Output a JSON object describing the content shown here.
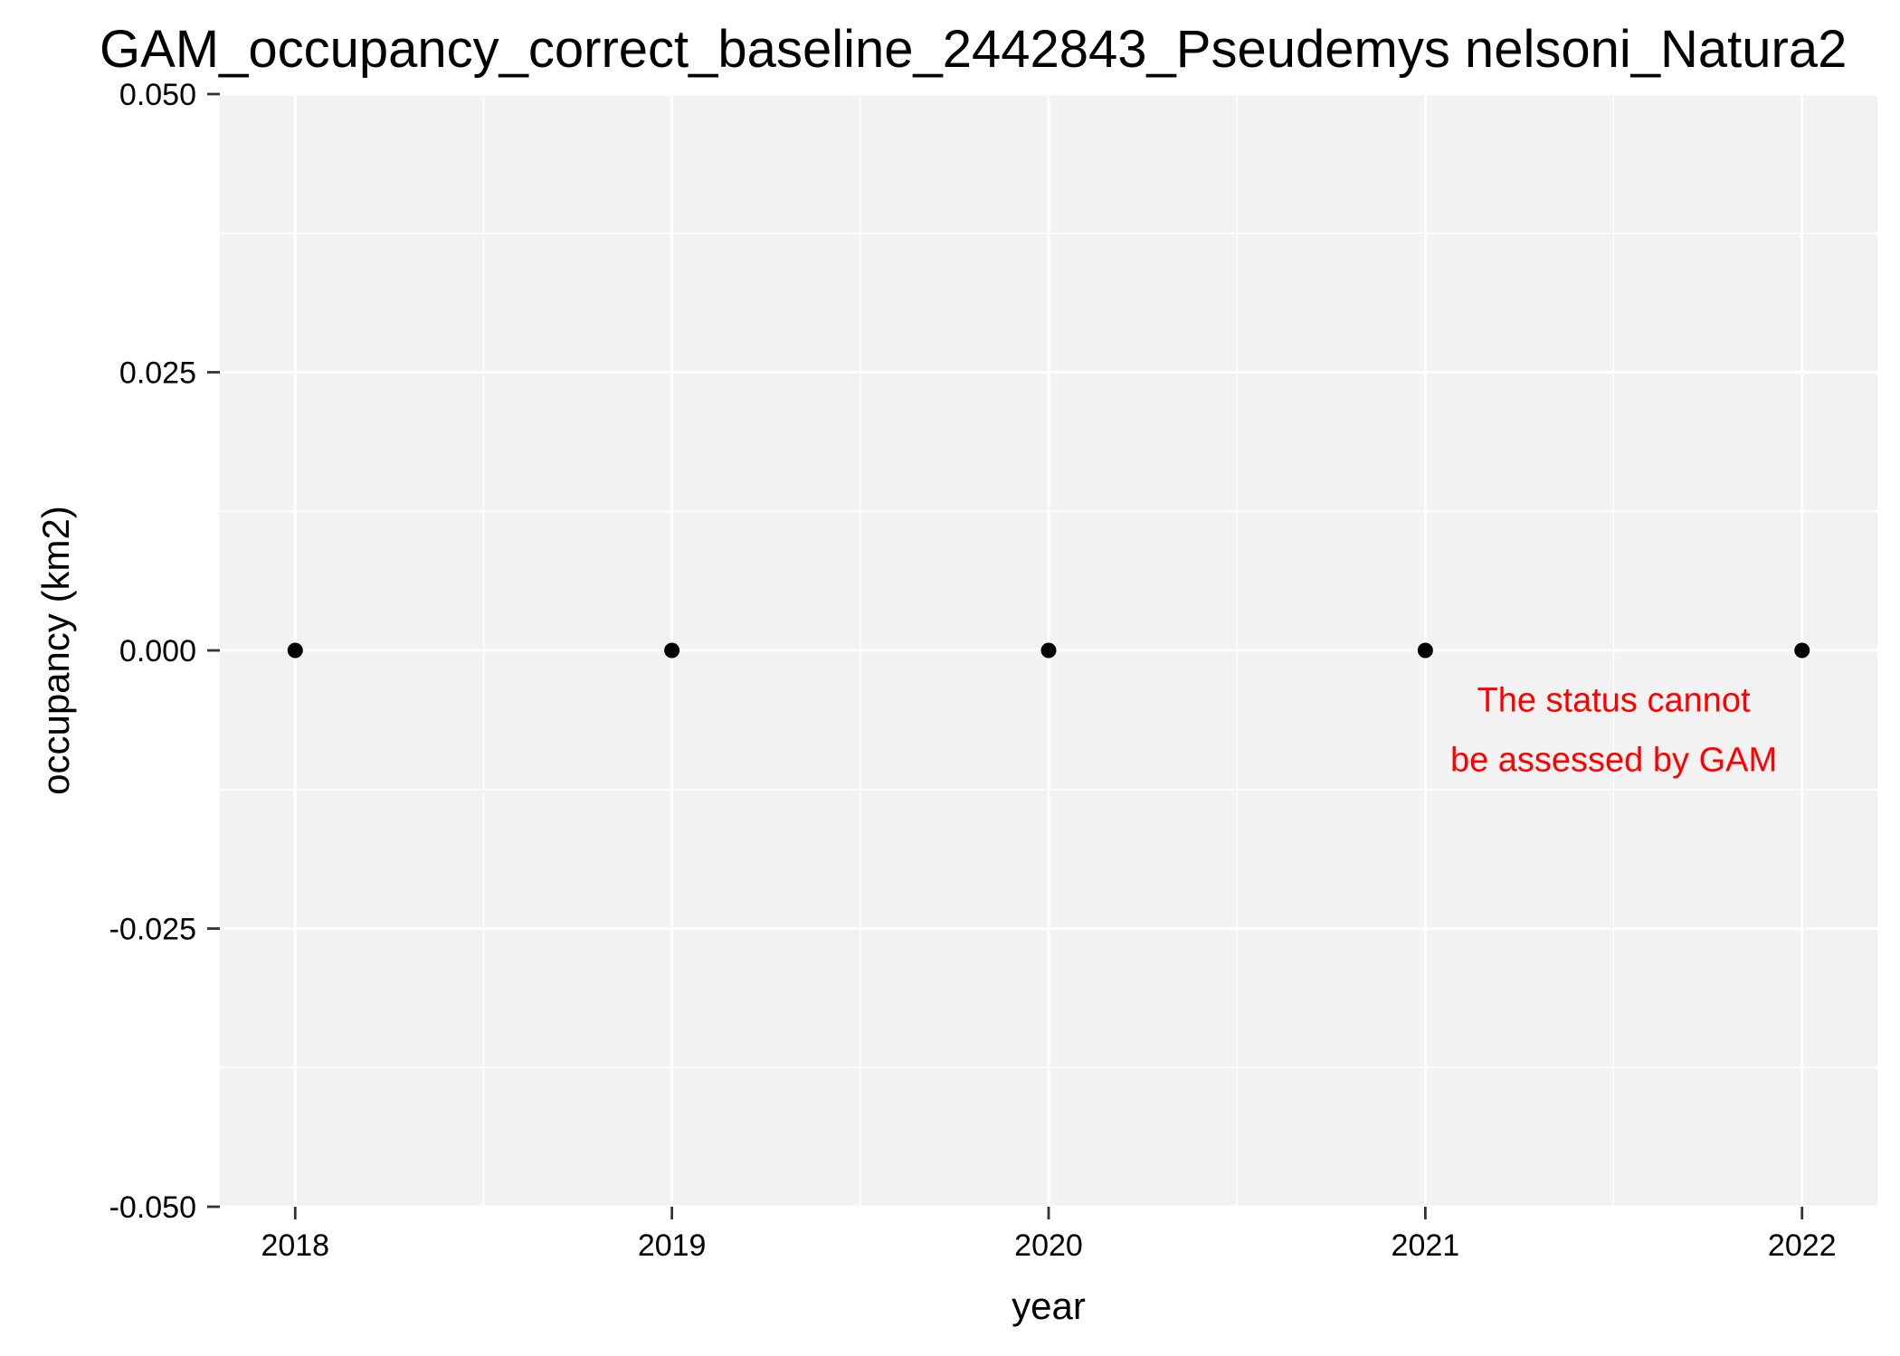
{
  "chart_data": {
    "type": "scatter",
    "title": "GAM_occupancy_correct_baseline_2442843_Pseudemys nelsoni_Natura2",
    "xlabel": "year",
    "ylabel": "occupancy (km2)",
    "x": [
      2018,
      2019,
      2020,
      2021,
      2022
    ],
    "y": [
      0,
      0,
      0,
      0,
      0
    ],
    "xlim": [
      2017.8,
      2022.2
    ],
    "ylim": [
      -0.05,
      0.05
    ],
    "x_ticks": [
      2018,
      2019,
      2020,
      2021,
      2022
    ],
    "x_tick_labels": [
      "2018",
      "2019",
      "2020",
      "2021",
      "2022"
    ],
    "y_ticks": [
      -0.05,
      -0.025,
      0,
      0.025,
      0.05
    ],
    "y_tick_labels": [
      "-0.050",
      "-0.025",
      "0.000",
      "0.025",
      "0.050"
    ],
    "grid": true,
    "panel_background": "#F2F2F2",
    "grid_color": "#FFFFFF",
    "point_color": "#000000",
    "annotation": {
      "lines": [
        "The status cannot",
        "be assessed by GAM"
      ],
      "color": "#FF0000",
      "x": 2021.5,
      "y": -0.0045
    }
  }
}
